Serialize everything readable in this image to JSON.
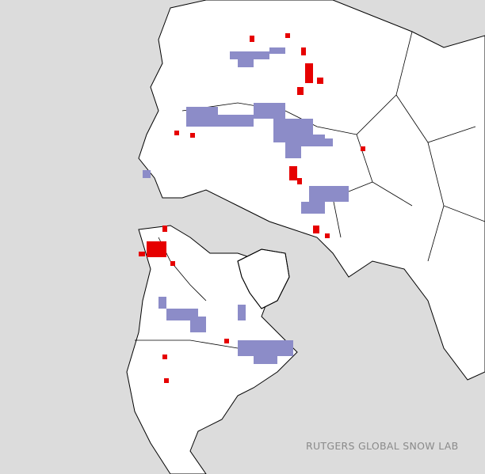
{
  "credit": "RUTGERS GLOBAL SNOW LAB",
  "colors": {
    "ocean": "#dcdcdc",
    "land": "#ffffff",
    "border": "#000000",
    "snow_gain": "#8c8cc8",
    "snow_loss": "#e60000"
  },
  "map_type": "Northern Hemisphere polar stereographic snow cover change"
}
